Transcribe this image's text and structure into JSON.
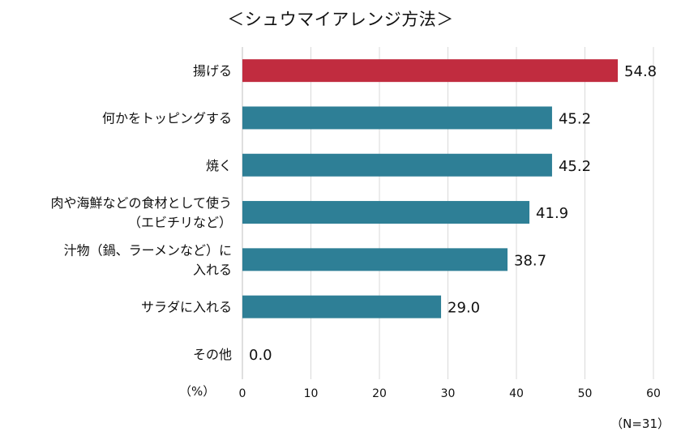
{
  "chart_data": {
    "type": "bar",
    "orientation": "horizontal",
    "title": "＜シュウマイアレンジ方法＞",
    "axis_unit_label": "（%）",
    "note": "（N=31）",
    "categories": [
      [
        "揚げる"
      ],
      [
        "何かをトッピングする"
      ],
      [
        "焼く"
      ],
      [
        "肉や海鮮などの食材として使う",
        "（エビチリなど）"
      ],
      [
        "汁物（鍋、ラーメンなど）に",
        "入れる"
      ],
      [
        "サラダに入れる"
      ],
      [
        "その他"
      ]
    ],
    "values": [
      54.8,
      45.2,
      45.2,
      41.9,
      38.7,
      29.0,
      0.0
    ],
    "value_labels": [
      "54.8",
      "45.2",
      "45.2",
      "41.9",
      "38.7",
      "29.0",
      "0.0"
    ],
    "highlight_index": 0,
    "xlim": [
      0,
      60
    ],
    "xticks": [
      "0",
      "10",
      "20",
      "30",
      "40",
      "50",
      "60"
    ],
    "grid": "vertical",
    "colors": {
      "highlight": "#c12c3f",
      "default": "#2e7f96",
      "grid": "#d9d9d9",
      "axis": "#bfbfbf"
    }
  }
}
